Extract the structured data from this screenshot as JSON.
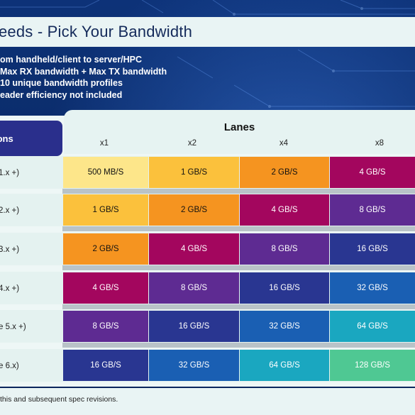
{
  "slide": {
    "title": "eeds - Pick Your Bandwidth",
    "bullets": [
      "om handheld/client to server/HPC",
      "Max RX bandwidth + Max TX bandwidth",
      "10 unique bandwidth profiles",
      "eader efficiency not included"
    ]
  },
  "table": {
    "spec_header": "ions",
    "lanes_title": "Lanes",
    "lanes": [
      "x1",
      "x2",
      "x4",
      "x8"
    ],
    "rows": [
      {
        "label": "1.x +)",
        "cells": [
          "500 MB/S",
          "1 GB/S",
          "2 GB/S",
          "4 GB/S"
        ]
      },
      {
        "label": "2.x +)",
        "cells": [
          "1 GB/S",
          "2 GB/S",
          "4 GB/S",
          "8 GB/S"
        ]
      },
      {
        "label": "3.x +)",
        "cells": [
          "2 GB/S",
          "4 GB/S",
          "8 GB/S",
          "16 GB/S"
        ]
      },
      {
        "label": "4.x +)",
        "cells": [
          "4 GB/S",
          "8 GB/S",
          "16 GB/S",
          "32 GB/S"
        ]
      },
      {
        "label": "e 5.x +)",
        "cells": [
          "8 GB/S",
          "16 GB/S",
          "32 GB/S",
          "64 GB/S"
        ]
      },
      {
        "label": "e 6.x)",
        "cells": [
          "16 GB/S",
          "32 GB/S",
          "64 GB/S",
          "128 GB/S"
        ]
      }
    ]
  },
  "footer": {
    "text": "this and subsequent spec revisions."
  },
  "colors": {
    "500 MB/S": "#fde68a",
    "1 GB/S": "#fbc13c",
    "2 GB/S": "#f59420",
    "4 GB/S": "#a3065e",
    "8 GB/S": "#5e2b92",
    "16 GB/S": "#293691",
    "32 GB/S": "#1a5fb3",
    "64 GB/S": "#1aa7c0",
    "128 GB/S": "#4fc893"
  }
}
